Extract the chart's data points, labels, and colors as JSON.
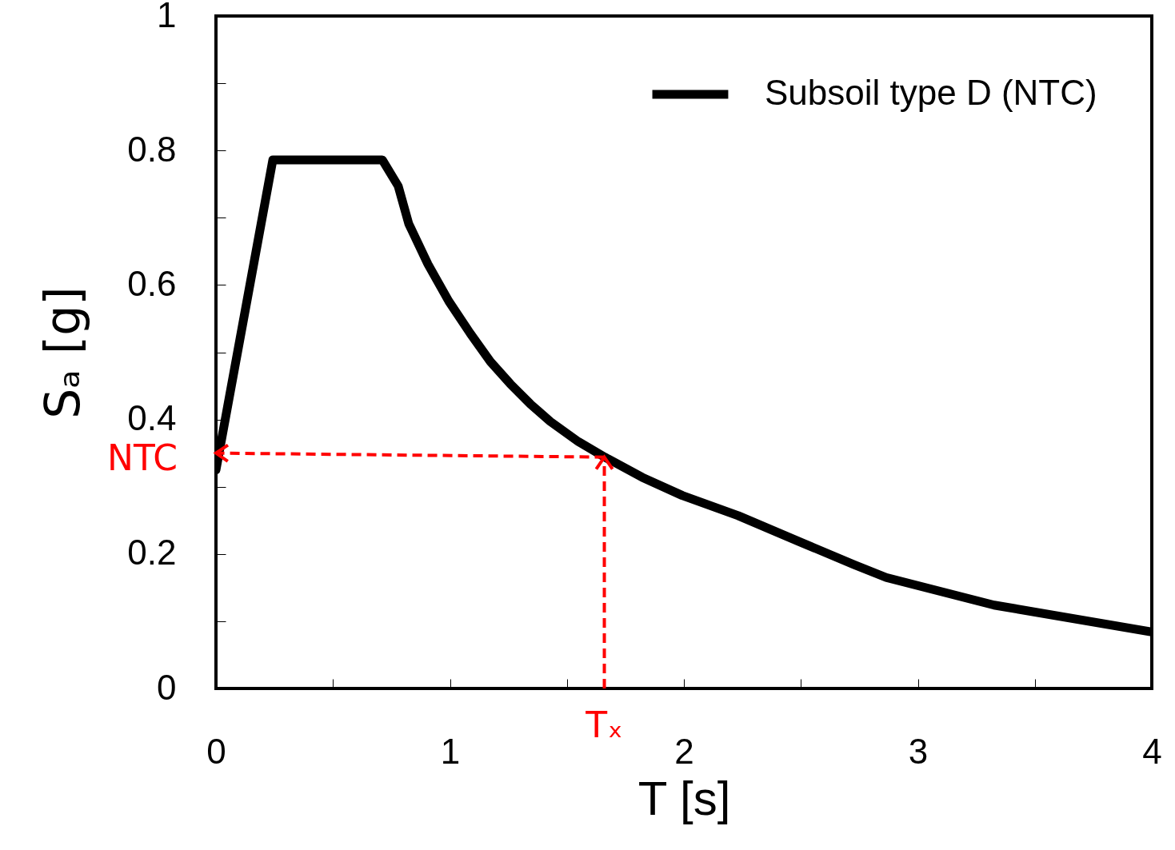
{
  "chart_data": {
    "type": "line",
    "xlabel": "T [s]",
    "ylabel": "Sₐ [g]",
    "x": [
      0,
      0.243,
      0.711,
      0.779,
      0.824,
      0.906,
      0.995,
      1.087,
      1.173,
      1.258,
      1.344,
      1.429,
      1.549,
      1.662,
      1.822,
      1.993,
      2.232,
      2.489,
      2.728,
      2.865,
      3.326,
      4.0
    ],
    "series": [
      {
        "name": "Subsoil type D (NTC)",
        "color": "#000000",
        "values": [
          0.325,
          0.786,
          0.786,
          0.747,
          0.691,
          0.631,
          0.576,
          0.528,
          0.486,
          0.453,
          0.423,
          0.397,
          0.367,
          0.344,
          0.314,
          0.287,
          0.257,
          0.219,
          0.184,
          0.165,
          0.124,
          0.084
        ]
      }
    ],
    "xlim": [
      0,
      4
    ],
    "ylim": [
      0,
      1
    ],
    "xticks": [
      0,
      {
        "value": 0.5,
        "label": null
      },
      1,
      {
        "value": 1.5,
        "label": null
      },
      2,
      {
        "value": 2.5,
        "label": null
      },
      3,
      {
        "value": 3.5,
        "label": null
      },
      4
    ],
    "yticks": [
      0,
      {
        "value": 0.1,
        "label": null
      },
      0.2,
      {
        "value": 0.3,
        "label": null
      },
      0.4,
      {
        "value": 0.5,
        "label": null
      },
      0.6,
      {
        "value": 0.7,
        "label": null
      },
      0.8,
      {
        "value": 0.9,
        "label": null
      },
      1
    ],
    "annotations": [
      {
        "text": "NTC",
        "x": 0,
        "y": 0.35
      },
      {
        "text": "Tₓ",
        "x": 1.66,
        "y": 0.344
      }
    ],
    "grid": false,
    "legend": "top right",
    "marker": "none",
    "line_style": "solid"
  }
}
